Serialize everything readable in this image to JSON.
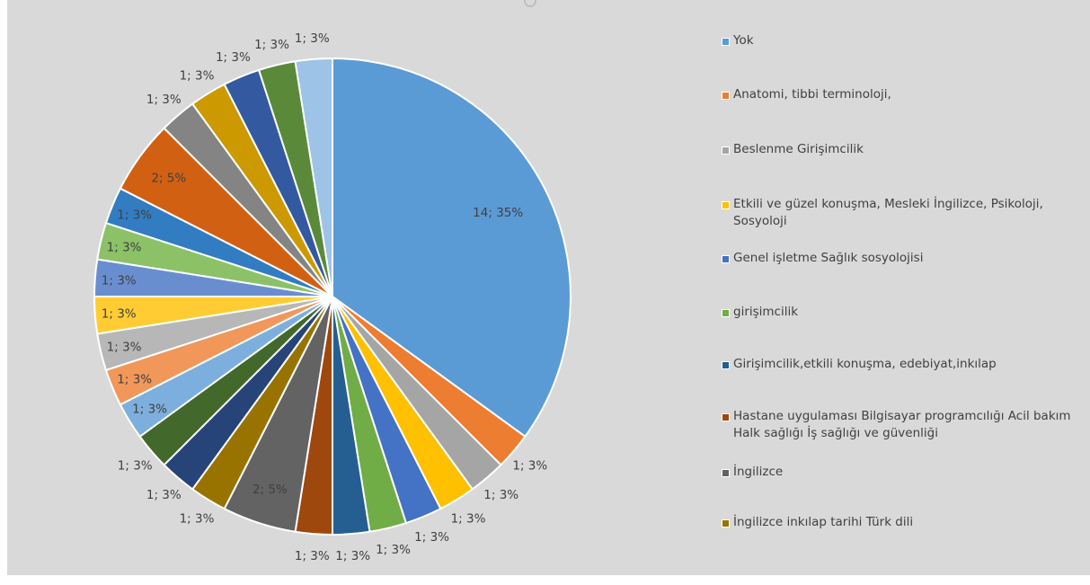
{
  "chart_data": {
    "type": "pie",
    "title": "",
    "slices": [
      {
        "count": 14,
        "percent": 35,
        "label": "14; 35%",
        "color": "#5b9bd5"
      },
      {
        "count": 1,
        "percent": 3,
        "label": "1; 3%",
        "color": "#ed7d31"
      },
      {
        "count": 1,
        "percent": 3,
        "label": "1; 3%",
        "color": "#a5a5a5"
      },
      {
        "count": 1,
        "percent": 3,
        "label": "1; 3%",
        "color": "#ffc000"
      },
      {
        "count": 1,
        "percent": 3,
        "label": "1; 3%",
        "color": "#4472c4"
      },
      {
        "count": 1,
        "percent": 3,
        "label": "1; 3%",
        "color": "#70ad47"
      },
      {
        "count": 1,
        "percent": 3,
        "label": "1; 3%",
        "color": "#255e91"
      },
      {
        "count": 1,
        "percent": 3,
        "label": "1; 3%",
        "color": "#9e480e"
      },
      {
        "count": 2,
        "percent": 5,
        "label": "2; 5%",
        "color": "#636363"
      },
      {
        "count": 1,
        "percent": 3,
        "label": "1; 3%",
        "color": "#997300"
      },
      {
        "count": 1,
        "percent": 3,
        "label": "1; 3%",
        "color": "#264478"
      },
      {
        "count": 1,
        "percent": 3,
        "label": "1; 3%",
        "color": "#43682b"
      },
      {
        "count": 1,
        "percent": 3,
        "label": "1; 3%",
        "color": "#7cafdd"
      },
      {
        "count": 1,
        "percent": 3,
        "label": "1; 3%",
        "color": "#f1975a"
      },
      {
        "count": 1,
        "percent": 3,
        "label": "1; 3%",
        "color": "#b7b7b7"
      },
      {
        "count": 1,
        "percent": 3,
        "label": "1; 3%",
        "color": "#ffcd33"
      },
      {
        "count": 1,
        "percent": 3,
        "label": "1; 3%",
        "color": "#698ed0"
      },
      {
        "count": 1,
        "percent": 3,
        "label": "1; 3%",
        "color": "#8cc168"
      },
      {
        "count": 1,
        "percent": 3,
        "label": "1; 3%",
        "color": "#327dc2"
      },
      {
        "count": 2,
        "percent": 5,
        "label": "2; 5%",
        "color": "#d26012"
      },
      {
        "count": 1,
        "percent": 3,
        "label": "1; 3%",
        "color": "#848484"
      },
      {
        "count": 1,
        "percent": 3,
        "label": "1; 3%",
        "color": "#cc9a00"
      },
      {
        "count": 1,
        "percent": 3,
        "label": "1; 3%",
        "color": "#335aa1"
      },
      {
        "count": 1,
        "percent": 3,
        "label": "1; 3%",
        "color": "#5a8a39"
      },
      {
        "count": 1,
        "percent": 3,
        "label": "1; 3%",
        "color": "#9dc3e6"
      }
    ],
    "legend_position": "right",
    "legend": [
      {
        "label": "Yok",
        "color": "#5b9bd5"
      },
      {
        "label": "Anatomi, tibbi terminoloji,",
        "color": "#ed7d31"
      },
      {
        "label": "Beslenme Girişimcilik",
        "color": "#a5a5a5"
      },
      {
        "label": "Etkili ve güzel konuşma, Mesleki İngilizce, Psikoloji, Sosyoloji",
        "color": "#ffc000"
      },
      {
        "label": "Genel işletme Sağlık sosyolojisi",
        "color": "#4472c4"
      },
      {
        "label": "girişimcilik",
        "color": "#70ad47"
      },
      {
        "label": "Girişimcilik,etkili konuşma, edebiyat,inkılap",
        "color": "#255e91"
      },
      {
        "label": "Hastane uygulaması Bilgisayar programcılığı  Acil bakım Halk sağlığı İş sağlığı ve güvenliği",
        "color": "#9e480e"
      },
      {
        "label": "İngilizce",
        "color": "#636363"
      },
      {
        "label": "İngilizce inkılap tarihi Türk dili",
        "color": "#997300"
      }
    ]
  }
}
